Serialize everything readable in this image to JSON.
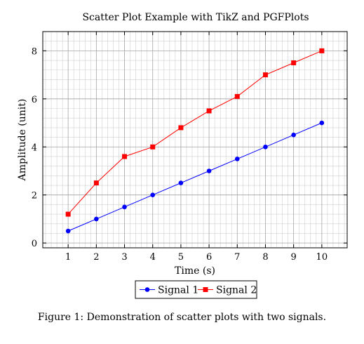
{
  "chart_data": {
    "type": "scatter",
    "title": "Scatter Plot Example with TikZ and PGFPlots",
    "xlabel": "Time (s)",
    "ylabel": "Amplitude (unit)",
    "xlim": [
      0.1,
      10.9
    ],
    "ylim": [
      -0.2,
      8.8
    ],
    "xticks": [
      1,
      2,
      3,
      4,
      5,
      6,
      7,
      8,
      9,
      10
    ],
    "yticks": [
      0,
      2,
      4,
      6,
      8
    ],
    "grid": "major and minor",
    "legend": "bottom-center",
    "series": [
      {
        "name": "Signal 1",
        "color": "#0000ff",
        "marker": "circle",
        "x": [
          1,
          2,
          3,
          4,
          5,
          6,
          7,
          8,
          9,
          10
        ],
        "y": [
          0.5,
          1.0,
          1.5,
          2.0,
          2.5,
          3.0,
          3.5,
          4.0,
          4.5,
          5.0
        ]
      },
      {
        "name": "Signal 2",
        "color": "#ff0000",
        "marker": "square",
        "x": [
          1,
          2,
          3,
          4,
          5,
          6,
          7,
          8,
          9,
          10
        ],
        "y": [
          1.2,
          2.5,
          3.6,
          4.0,
          4.8,
          5.5,
          6.1,
          7.0,
          7.5,
          8.0
        ]
      }
    ]
  },
  "caption": "Figure 1: Demonstration of scatter plots with two signals."
}
